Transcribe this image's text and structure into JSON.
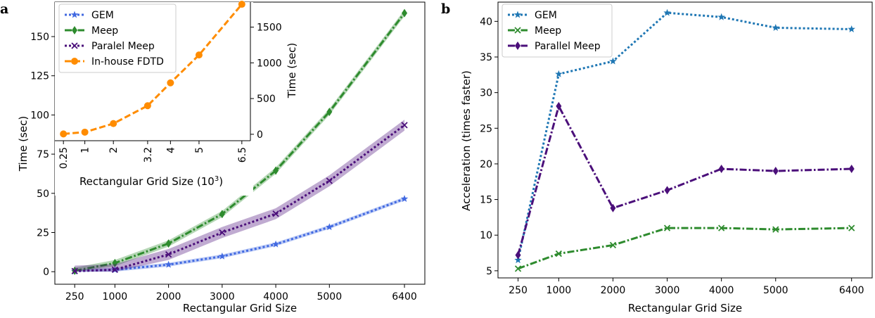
{
  "chart_data": [
    {
      "panel": "a",
      "type": "line",
      "xlabel": "Rectangular Grid Size",
      "ylabel": "Time (sec)",
      "x": [
        250,
        1000,
        2000,
        3000,
        4000,
        5000,
        6400
      ],
      "x_ticks": [
        250,
        1000,
        2000,
        3000,
        4000,
        5000,
        6400
      ],
      "xlim": [
        -120,
        6780
      ],
      "ylim": [
        -8,
        172
      ],
      "y_ticks": [
        0,
        25,
        50,
        75,
        100,
        125,
        150
      ],
      "series": [
        {
          "name": "GEM",
          "values": [
            0.3,
            1.2,
            4.5,
            9.8,
            17.5,
            28.5,
            46.5
          ],
          "color": "#4169e1",
          "style": "dotted",
          "marker": "star",
          "band": 1.2
        },
        {
          "name": "Meep",
          "values": [
            0.6,
            5.5,
            18.0,
            36.8,
            64.5,
            102.0,
            165.0
          ],
          "color": "#2e8b2e",
          "style": "dashdot",
          "marker": "diamond",
          "band": 2.0
        },
        {
          "name": "Paralel Meep",
          "values": [
            0.4,
            1.3,
            11.0,
            25.0,
            37.0,
            58.0,
            93.5
          ],
          "color": "#4b0f7a",
          "style": "dotted",
          "marker": "x",
          "band": 3.5
        }
      ],
      "legend": "inside-inset",
      "inset": {
        "xlabel": "Rectangular Grid Size (10^3)",
        "ylabel": "Time (sec)",
        "x": [
          0.25,
          1,
          2,
          3.2,
          4,
          5,
          6.5
        ],
        "x_tick_labels": [
          "0.25",
          "1",
          "2",
          "3.2",
          "4",
          "5",
          "6.5"
        ],
        "xlim": [
          -0.05,
          6.8
        ],
        "ylim": [
          -90,
          1850
        ],
        "y_ticks": [
          0,
          500,
          1000,
          1500
        ],
        "series": [
          {
            "name": "In-house FDTD",
            "values": [
              5,
              30,
              150,
              400,
              720,
              1110,
              1820
            ],
            "color": "#ff8c00",
            "style": "dashed",
            "marker": "circle"
          }
        ]
      }
    },
    {
      "panel": "b",
      "type": "line",
      "xlabel": "Rectangular Grid Size",
      "ylabel": "Acceleration (times faster)",
      "x": [
        250,
        1000,
        2000,
        3000,
        4000,
        5000,
        6400
      ],
      "x_ticks": [
        250,
        1000,
        2000,
        3000,
        4000,
        5000,
        6400
      ],
      "xlim": [
        -120,
        6780
      ],
      "ylim": [
        4.0,
        42.7
      ],
      "y_ticks": [
        5,
        10,
        15,
        20,
        25,
        30,
        35,
        40
      ],
      "legend": "top-left",
      "series": [
        {
          "name": "GEM",
          "values": [
            6.5,
            32.6,
            34.4,
            41.2,
            40.6,
            39.1,
            38.9
          ],
          "color": "#1f77b4",
          "style": "dotted",
          "marker": "star"
        },
        {
          "name": "Meep",
          "values": [
            5.3,
            7.4,
            8.6,
            11.0,
            11.0,
            10.8,
            11.0
          ],
          "color": "#2e8b2e",
          "style": "dashdot",
          "marker": "x"
        },
        {
          "name": "Parallel Meep",
          "values": [
            7.2,
            28.1,
            13.8,
            16.3,
            19.3,
            19.0,
            19.3
          ],
          "color": "#4b0f7a",
          "style": "dashdot",
          "marker": "diamond"
        }
      ]
    }
  ],
  "labels": {
    "panel_a": "a",
    "panel_b": "b",
    "a_xlabel": "Rectangular Grid Size",
    "a_ylabel": "Time (sec)",
    "inset_xlabel_main": "Rectangular Grid Size (10",
    "inset_xlabel_sup": "3",
    "inset_xlabel_end": ")",
    "inset_ylabel": "Time (sec)",
    "b_xlabel": "Rectangular Grid Size",
    "b_ylabel": "Acceleration (times faster)",
    "legend_a": [
      "GEM",
      "Meep",
      "Paralel Meep",
      "In-house FDTD"
    ],
    "legend_b": [
      "GEM",
      "Meep",
      "Parallel Meep"
    ]
  }
}
